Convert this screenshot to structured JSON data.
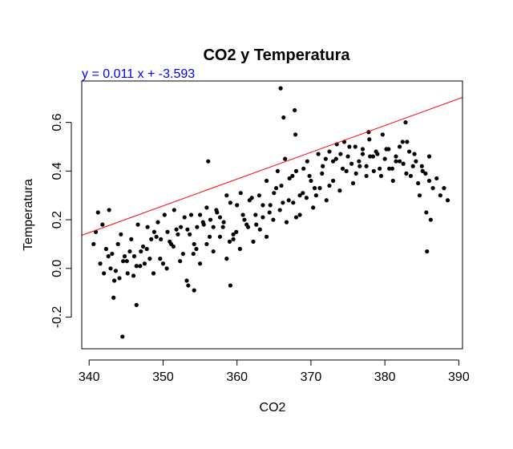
{
  "chart_data": {
    "type": "scatter",
    "title": "CO2 y Temperatura",
    "subtitle": "y = 0.011 x + -3.593",
    "xlabel": "CO2",
    "ylabel": "Temperatura",
    "xlim": [
      339,
      390.5
    ],
    "ylim": [
      -0.33,
      0.77
    ],
    "x_ticks": [
      340,
      350,
      360,
      370,
      380,
      390
    ],
    "x_tick_labels": [
      "340",
      "350",
      "360",
      "370",
      "380",
      "390"
    ],
    "y_ticks": [
      -0.2,
      0.0,
      0.2,
      0.4,
      0.6
    ],
    "y_tick_labels": [
      "-0.2",
      "0.0",
      "0.2",
      "0.4",
      "0.6"
    ],
    "grid": false,
    "legend": "none",
    "regression_line": {
      "slope": 0.011,
      "intercept": -3.593
    },
    "colors": {
      "points": "#000000",
      "line": "#ff0000",
      "equation": "#0000ff"
    },
    "x": [
      340.6,
      341.2,
      341.8,
      342.3,
      342.9,
      343.4,
      343.9,
      344.3,
      344.8,
      345.2,
      345.7,
      346.1,
      346.6,
      347.0,
      347.5,
      347.9,
      348.4,
      348.8,
      349.3,
      349.7,
      350.2,
      350.6,
      351.1,
      351.5,
      352.0,
      352.4,
      352.9,
      353.3,
      353.8,
      354.2,
      354.6,
      355.0,
      355.5,
      355.9,
      356.4,
      356.8,
      357.3,
      357.7,
      358.2,
      358.6,
      359.1,
      359.5,
      360.0,
      360.5,
      361.0,
      361.5,
      362.0,
      362.5,
      363.0,
      363.5,
      364.0,
      364.5,
      365.0,
      365.5,
      366.0,
      366.5,
      367.0,
      367.5,
      368.0,
      368.5,
      369.0,
      369.5,
      370.0,
      370.5,
      371.0,
      371.5,
      372.0,
      372.5,
      373.0,
      373.5,
      374.0,
      374.5,
      375.0,
      375.5,
      376.0,
      376.5,
      377.0,
      377.5,
      378.0,
      378.5,
      379.0,
      379.5,
      380.0,
      380.5,
      381.0,
      381.5,
      382.0,
      382.5,
      383.0,
      383.5,
      384.0,
      384.5,
      385.0,
      385.5,
      386.0,
      386.5,
      387.0,
      387.5,
      388.0,
      388.5,
      341.5,
      342.6,
      343.6,
      344.6,
      345.5,
      346.4,
      347.3,
      348.2,
      349.1,
      350.0,
      350.9,
      351.8,
      352.7,
      353.6,
      354.5,
      355.4,
      356.3,
      357.2,
      358.1,
      359.0,
      359.9,
      360.8,
      361.7,
      362.6,
      363.5,
      364.4,
      365.3,
      366.2,
      367.1,
      368.0,
      368.9,
      369.8,
      370.7,
      371.6,
      372.5,
      373.4,
      374.3,
      375.2,
      376.1,
      377.0,
      377.9,
      378.8,
      379.7,
      380.6,
      381.5,
      382.4,
      383.3,
      384.2,
      385.1,
      386.0,
      340.9,
      342.0,
      343.1,
      344.1,
      345.1,
      346.0,
      346.9,
      347.8,
      348.7,
      349.6,
      350.5,
      351.4,
      352.3,
      353.2,
      354.1,
      355.0,
      355.9,
      356.8,
      357.7,
      358.6,
      359.5,
      360.4,
      361.3,
      362.2,
      363.1,
      364.0,
      364.9,
      365.8,
      366.7,
      367.6,
      368.5,
      369.4,
      370.3,
      371.2,
      372.1,
      373.0,
      373.9,
      374.8,
      375.7,
      376.6,
      377.5,
      378.4,
      379.3,
      380.2,
      381.1,
      382.0,
      382.9,
      383.8,
      384.7,
      385.6,
      344.5,
      346.4,
      343.3,
      353.4,
      354.2,
      356.1,
      359.1,
      365.9,
      366.3,
      367.9,
      377.8,
      382.8,
      385.7,
      386.2,
      367.8,
      342.7
    ],
    "y": [
      0.1,
      0.23,
      0.18,
      0.08,
      0.0,
      -0.05,
      0.1,
      0.14,
      0.05,
      -0.02,
      0.12,
      0.05,
      0.18,
      0.07,
      0.02,
      0.17,
      0.12,
      0.15,
      0.19,
      0.12,
      0.22,
      0.15,
      0.1,
      0.24,
      0.14,
      0.17,
      0.21,
      0.16,
      0.22,
      0.1,
      0.17,
      0.22,
      0.18,
      0.25,
      0.2,
      0.17,
      0.23,
      0.21,
      0.19,
      0.3,
      0.27,
      0.14,
      0.26,
      0.31,
      0.2,
      0.17,
      0.29,
      0.22,
      0.3,
      0.21,
      0.36,
      0.26,
      0.31,
      0.4,
      0.34,
      0.45,
      0.28,
      0.38,
      0.4,
      0.3,
      0.41,
      0.44,
      0.36,
      0.33,
      0.47,
      0.39,
      0.45,
      0.48,
      0.44,
      0.51,
      0.47,
      0.52,
      0.46,
      0.43,
      0.5,
      0.44,
      0.49,
      0.42,
      0.46,
      0.4,
      0.47,
      0.38,
      0.45,
      0.49,
      0.41,
      0.44,
      0.5,
      0.43,
      0.52,
      0.38,
      0.47,
      0.35,
      0.42,
      0.39,
      0.46,
      0.33,
      0.37,
      0.3,
      0.33,
      0.28,
      0.02,
      0.05,
      -0.01,
      0.03,
      0.07,
      0.01,
      0.09,
      0.04,
      0.13,
      0.02,
      0.11,
      0.16,
      0.06,
      0.14,
      0.08,
      0.19,
      0.13,
      0.24,
      0.17,
      0.11,
      0.15,
      0.22,
      0.28,
      0.18,
      0.26,
      0.23,
      0.33,
      0.27,
      0.37,
      0.21,
      0.31,
      0.38,
      0.3,
      0.42,
      0.34,
      0.45,
      0.41,
      0.5,
      0.39,
      0.47,
      0.53,
      0.48,
      0.55,
      0.41,
      0.46,
      0.52,
      0.48,
      0.44,
      0.4,
      0.36,
      0.15,
      -0.02,
      0.06,
      -0.04,
      0.03,
      -0.03,
      0.01,
      0.08,
      -0.02,
      0.04,
      0.0,
      0.09,
      0.03,
      -0.05,
      0.06,
      0.02,
      0.1,
      0.07,
      0.13,
      0.04,
      0.12,
      0.08,
      0.18,
      0.11,
      0.16,
      0.13,
      0.2,
      0.24,
      0.19,
      0.27,
      0.22,
      0.29,
      0.25,
      0.33,
      0.28,
      0.36,
      0.32,
      0.4,
      0.35,
      0.42,
      0.38,
      0.46,
      0.41,
      0.49,
      0.36,
      0.44,
      0.39,
      0.42,
      0.3,
      0.23,
      -0.28,
      -0.15,
      -0.12,
      -0.07,
      -0.09,
      0.44,
      -0.07,
      0.74,
      0.62,
      0.55,
      0.56,
      0.6,
      0.07,
      0.2,
      0.65,
      0.24
    ]
  }
}
